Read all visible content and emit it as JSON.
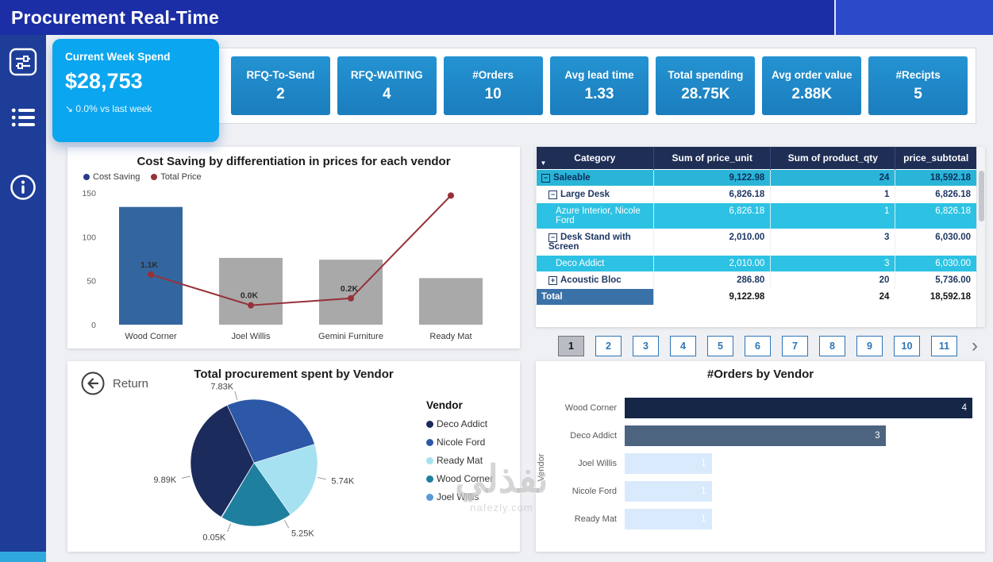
{
  "header": {
    "title": "Procurement Real-Time"
  },
  "sidebar": {
    "icons": [
      "filters",
      "list",
      "info"
    ]
  },
  "kpis": {
    "highlight": {
      "label": "Current Week Spend",
      "value": "$28,753",
      "delta": "↘ 0.0% vs last week"
    },
    "cards": [
      {
        "label": "RFQ-To-Send",
        "value": "2"
      },
      {
        "label": "RFQ-WAITING",
        "value": "4"
      },
      {
        "label": "#Orders",
        "value": "10"
      },
      {
        "label": "Avg lead time",
        "value": "1.33"
      },
      {
        "label": "Total spending",
        "value": "28.75K"
      },
      {
        "label": "Avg order value",
        "value": "2.88K"
      },
      {
        "label": "#Recipts",
        "value": "5"
      }
    ]
  },
  "table": {
    "columns": [
      "Category",
      "Sum of price_unit",
      "Sum of product_qty",
      "price_subtotal"
    ],
    "rows": [
      {
        "category": "Saleable",
        "price_unit": "9,122.98",
        "product_qty": "24",
        "price_subtotal": "18,592.18",
        "indent": 0,
        "expander": "minus",
        "style": "group-cyan"
      },
      {
        "category": "Large Desk",
        "price_unit": "6,826.18",
        "product_qty": "1",
        "price_subtotal": "6,826.18",
        "indent": 1,
        "expander": "minus",
        "style": "white-bold"
      },
      {
        "category": "Azure Interior, Nicole Ford",
        "price_unit": "6,826.18",
        "product_qty": "1",
        "price_subtotal": "6,826.18",
        "indent": 2,
        "expander": "",
        "style": "leaf-cyan"
      },
      {
        "category": "Desk Stand with Screen",
        "price_unit": "2,010.00",
        "product_qty": "3",
        "price_subtotal": "6,030.00",
        "indent": 1,
        "expander": "minus",
        "style": "white-bold"
      },
      {
        "category": "Deco Addict",
        "price_unit": "2,010.00",
        "product_qty": "3",
        "price_subtotal": "6,030.00",
        "indent": 2,
        "expander": "",
        "style": "leaf-cyan"
      },
      {
        "category": "Acoustic Bloc",
        "price_unit": "286.80",
        "product_qty": "20",
        "price_subtotal": "5,736.00",
        "indent": 1,
        "expander": "plus",
        "style": "white-bold"
      },
      {
        "category": "Total",
        "price_unit": "9,122.98",
        "product_qty": "24",
        "price_subtotal": "18,592.18",
        "indent": 0,
        "expander": "",
        "style": "total"
      }
    ]
  },
  "pagination": {
    "pages": [
      "1",
      "2",
      "3",
      "4",
      "5",
      "6",
      "7",
      "8",
      "9",
      "10",
      "11"
    ],
    "active_index": 0,
    "next_label": "›"
  },
  "watermark": {
    "line1": "نفذلي",
    "line2": "nafezly.com"
  },
  "chart_data": [
    {
      "id": "cost-saving-combo",
      "type": "bar",
      "title": "Cost Saving by differentiation in prices for each vendor",
      "categories": [
        "Wood Corner",
        "Joel Willis",
        "Gemini Furniture",
        "Ready Mat"
      ],
      "ylim": [
        0,
        150
      ],
      "yticks": [
        0,
        50,
        100,
        150
      ],
      "legend": [
        {
          "label": "Cost Saving",
          "color": "#2b3990"
        },
        {
          "label": "Total Price",
          "color": "#963138"
        }
      ],
      "series": [
        {
          "name": "Cost Saving",
          "kind": "bar",
          "values": [
            134,
            76,
            74,
            53
          ],
          "colors": [
            "#33669e",
            "#a9a9a9",
            "#a9a9a9",
            "#a9a9a9"
          ]
        },
        {
          "name": "Total Price",
          "kind": "line",
          "values": [
            57,
            22,
            30,
            147
          ],
          "color": "#963138",
          "point_labels": [
            "1.1K",
            "0.0K",
            "0.2K",
            ""
          ]
        }
      ]
    },
    {
      "id": "vendor-spend-pie",
      "type": "pie",
      "title": "Total procurement spent by Vendor",
      "legend_title": "Vendor",
      "return_label": "Return",
      "start_angle": -25,
      "slices": [
        {
          "label": "Nicole Ford",
          "value": 7.83,
          "display": "7.83K",
          "color": "#2d57a7",
          "label_angle": -15
        },
        {
          "label": "Ready Mat",
          "value": 5.74,
          "display": "5.74K",
          "color": "#a5e1f0",
          "label_angle": 103
        },
        {
          "label": "Wood Corner",
          "value": 5.25,
          "display": "5.25K",
          "color": "#1e7f9e",
          "label_angle": 152
        },
        {
          "label": "Joel Willis",
          "value": 0.05,
          "display": "0.05K",
          "color": "#5b9bd5",
          "label_angle": 201
        },
        {
          "label": "Deco Addict",
          "value": 9.89,
          "display": "9.89K",
          "color": "#1b2b5c",
          "label_angle": 258
        }
      ],
      "legend_order": [
        "Deco Addict",
        "Nicole Ford",
        "Ready Mat",
        "Wood Corner",
        "Joel Willis"
      ]
    },
    {
      "id": "orders-by-vendor",
      "type": "bar",
      "orientation": "horizontal",
      "title": "#Orders by Vendor",
      "axis_label": "Vendor",
      "categories": [
        "Wood Corner",
        "Deco Addict",
        "Joel Willis",
        "Nicole Ford",
        "Ready Mat"
      ],
      "values": [
        4,
        3,
        1,
        1,
        1
      ],
      "colors": [
        "#152647",
        "#4d6480",
        "#d9eafc",
        "#d9eafc",
        "#d9eafc"
      ],
      "xlim": [
        0,
        4
      ]
    }
  ]
}
